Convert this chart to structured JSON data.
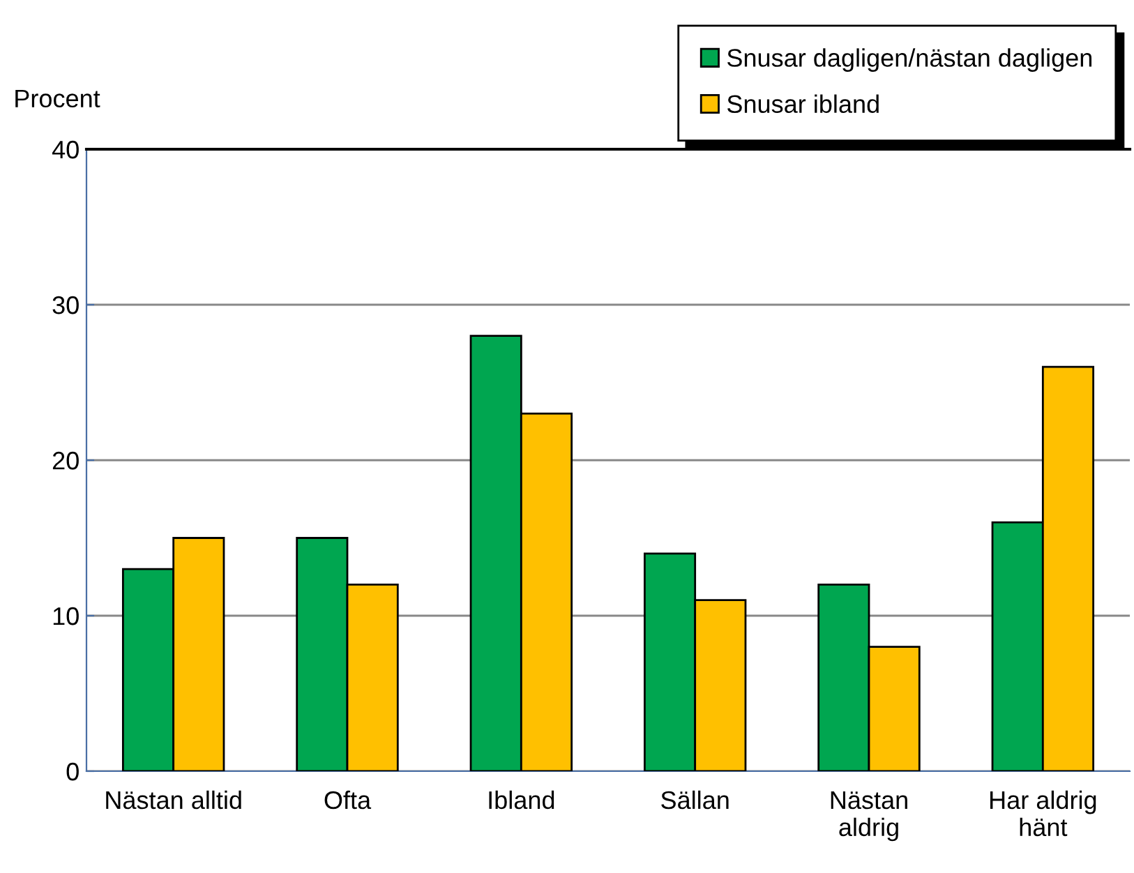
{
  "chart_data": {
    "type": "bar",
    "ylabel": "Procent",
    "categories": [
      "Nästan alltid",
      "Ofta",
      "Ibland",
      "Sällan",
      "Nästan\naldrig",
      "Har aldrig\nhänt"
    ],
    "series": [
      {
        "name": "Snusar dagligen/nästan dagligen",
        "color": "#00a650",
        "values": [
          13,
          15,
          28,
          14,
          12,
          16
        ]
      },
      {
        "name": "Snusar ibland",
        "color": "#ffc000",
        "values": [
          15,
          12,
          23,
          11,
          8,
          26
        ]
      }
    ],
    "ylim": [
      0,
      40
    ],
    "yticks": [
      0,
      10,
      20,
      30,
      40
    ],
    "grid": "y",
    "legend": "top right"
  }
}
